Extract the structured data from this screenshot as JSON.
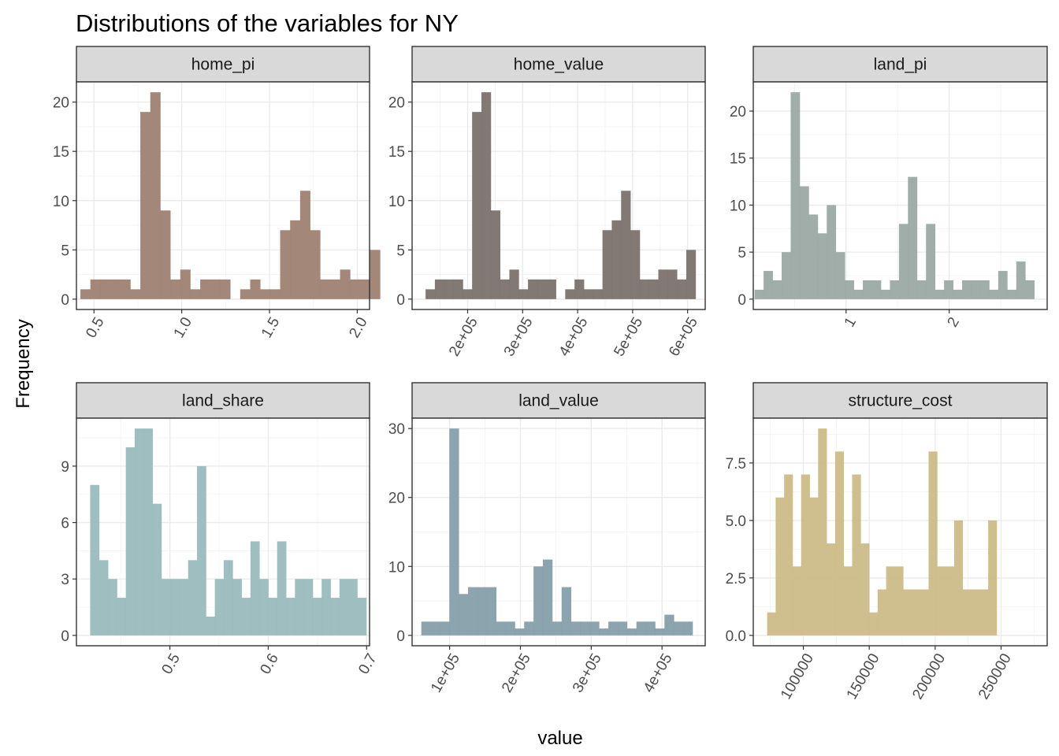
{
  "title": "Distributions of the variables for NY",
  "xlabel": "value",
  "ylabel": "Frequency",
  "chart_data": [
    {
      "type": "bar",
      "panel": "home_pi",
      "color": "#9E8272",
      "xlim": [
        0.4,
        2.07
      ],
      "ylim": [
        -1.05,
        22.05
      ],
      "xticks": [
        0.5,
        1.0,
        1.5,
        2.0
      ],
      "xtick_labels": [
        "0.5",
        "1.0",
        "1.5",
        "2.0"
      ],
      "xtick_rotation": 60,
      "yticks": [
        0,
        5,
        10,
        15,
        20
      ],
      "ytick_labels": [
        "0",
        "5",
        "10",
        "15",
        "20"
      ],
      "bin_start": 0.4225,
      "bin_width": 0.0569,
      "values": [
        1,
        2,
        2,
        2,
        2,
        1,
        19,
        21,
        9,
        2,
        3,
        1,
        2,
        2,
        2,
        0,
        1,
        2,
        1,
        1,
        7,
        8,
        11,
        7,
        2,
        2,
        3,
        2,
        2,
        5
      ]
    },
    {
      "type": "bar",
      "panel": "home_value",
      "color": "#7B716D",
      "xlim": [
        99000,
        632000
      ],
      "ylim": [
        -1.05,
        22.05
      ],
      "xticks": [
        200000,
        300000,
        400000,
        500000,
        600000
      ],
      "xtick_labels": [
        "2e+05",
        "3e+05",
        "4e+05",
        "5e+05",
        "6e+05"
      ],
      "xtick_rotation": 60,
      "yticks": [
        0,
        5,
        10,
        15,
        20
      ],
      "ytick_labels": [
        "0",
        "5",
        "10",
        "15",
        "20"
      ],
      "bin_start": 123500,
      "bin_width": 16930,
      "values": [
        1,
        2,
        2,
        2,
        1,
        19,
        21,
        9,
        2,
        3,
        1,
        2,
        2,
        2,
        0,
        1,
        2,
        1,
        1,
        7,
        8,
        11,
        7,
        2,
        2,
        3,
        3,
        2,
        5
      ]
    },
    {
      "type": "bar",
      "panel": "land_pi",
      "color": "#9BA9A3",
      "xlim": [
        0.1,
        2.95
      ],
      "ylim": [
        -1.1,
        23.1
      ],
      "xticks": [
        1,
        2
      ],
      "xtick_labels": [
        "1",
        "2"
      ],
      "xtick_rotation": 60,
      "yticks": [
        0,
        5,
        10,
        15,
        20
      ],
      "ytick_labels": [
        "0",
        "5",
        "10",
        "15",
        "20"
      ],
      "bin_start": 0.1125,
      "bin_width": 0.0875,
      "values": [
        1,
        3,
        2,
        5,
        22,
        12,
        9,
        7,
        10,
        5,
        2,
        1,
        2,
        2,
        1,
        2,
        8,
        13,
        2,
        8,
        1,
        2,
        1,
        2,
        2,
        2,
        1,
        3,
        1,
        4,
        2
      ]
    },
    {
      "type": "bar",
      "panel": "land_share",
      "color": "#99BBBD",
      "xlim": [
        0.405,
        0.703
      ],
      "ylim": [
        -0.55,
        11.55
      ],
      "xticks": [
        0.5,
        0.6,
        0.7
      ],
      "xtick_labels": [
        "0.5",
        "0.6",
        "0.7"
      ],
      "xtick_rotation": 60,
      "yticks": [
        0,
        3,
        6,
        9
      ],
      "ytick_labels": [
        "0",
        "3",
        "6",
        "9"
      ],
      "bin_start": 0.419,
      "bin_width": 0.00905,
      "values": [
        8,
        4,
        3,
        2,
        10,
        11,
        11,
        7,
        3,
        3,
        3,
        4,
        9,
        1,
        3,
        4,
        3,
        2,
        5,
        3,
        2,
        5,
        2,
        3,
        3,
        2,
        3,
        2,
        3,
        3,
        2
      ]
    },
    {
      "type": "bar",
      "panel": "land_value",
      "color": "#859FAA",
      "xlim": [
        47000,
        461000
      ],
      "ylim": [
        -1.5,
        31.5
      ],
      "xticks": [
        100000,
        200000,
        300000,
        400000
      ],
      "xtick_labels": [
        "1e+05",
        "2e+05",
        "3e+05",
        "4e+05"
      ],
      "xtick_rotation": 60,
      "yticks": [
        0,
        10,
        20,
        30
      ],
      "ytick_labels": [
        "0",
        "10",
        "20",
        "30"
      ],
      "bin_start": 60000,
      "bin_width": 13210,
      "values": [
        2,
        2,
        2,
        30,
        6,
        7,
        7,
        7,
        2,
        2,
        1,
        2,
        10,
        11,
        2,
        7,
        2,
        2,
        2,
        1,
        2,
        2,
        1,
        2,
        2,
        1,
        3,
        2,
        2
      ]
    },
    {
      "type": "bar",
      "panel": "structure_cost",
      "color": "#CCBC88",
      "xlim": [
        62000,
        285000
      ],
      "ylim": [
        -0.45,
        9.45
      ],
      "xticks": [
        100000,
        150000,
        200000,
        250000
      ],
      "xtick_labels": [
        "100000",
        "150000",
        "200000",
        "250000"
      ],
      "xtick_rotation": 60,
      "yticks": [
        0,
        2.5,
        5,
        7.5
      ],
      "ytick_labels": [
        "0.0",
        "2.5",
        "5.0",
        "7.5"
      ],
      "bin_start": 72500,
      "bin_width": 6450,
      "values": [
        1,
        6,
        7,
        3,
        7,
        6,
        9,
        4,
        8,
        3,
        7,
        4,
        1,
        2,
        3,
        3,
        2,
        2,
        2,
        8,
        3,
        3,
        5,
        2,
        2,
        2,
        5
      ]
    }
  ]
}
